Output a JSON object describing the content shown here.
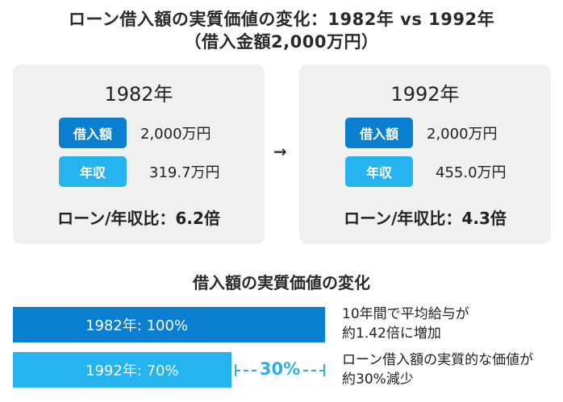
{
  "title": {
    "line1": "ローン借入額の実質価値の変化：1982年 vs 1992年",
    "line2": "（借入金額2,000万円）"
  },
  "arrow": "→",
  "cards": [
    {
      "year": "1982年",
      "loan_label": "借入額",
      "loan_value": "2,000万円",
      "income_label": "年収",
      "income_value": "319.7万円",
      "ratio_text": "ローン/年収比：6.2倍"
    },
    {
      "year": "1992年",
      "loan_label": "借入額",
      "loan_value": "2,000万円",
      "income_label": "年収",
      "income_value": "455.0万円",
      "ratio_text": "ローン/年収比：4.3倍"
    }
  ],
  "comparison": {
    "title": "借入額の実質価値の変化",
    "bars": [
      {
        "label": "1982年: 100%",
        "percent": 100
      },
      {
        "label": "1992年: 70%",
        "percent": 70
      }
    ],
    "gap_label": "30%",
    "notes": [
      {
        "line1": "10年間で平均給与が",
        "line2": "約1.42倍に増加"
      },
      {
        "line1": "ローン借入額の実質的な価値が",
        "line2": "約30%減少"
      }
    ]
  },
  "colors": {
    "dark_blue": "#0a7fd0",
    "light_blue": "#26b4f0",
    "card_bg": "#f0f0f0"
  }
}
